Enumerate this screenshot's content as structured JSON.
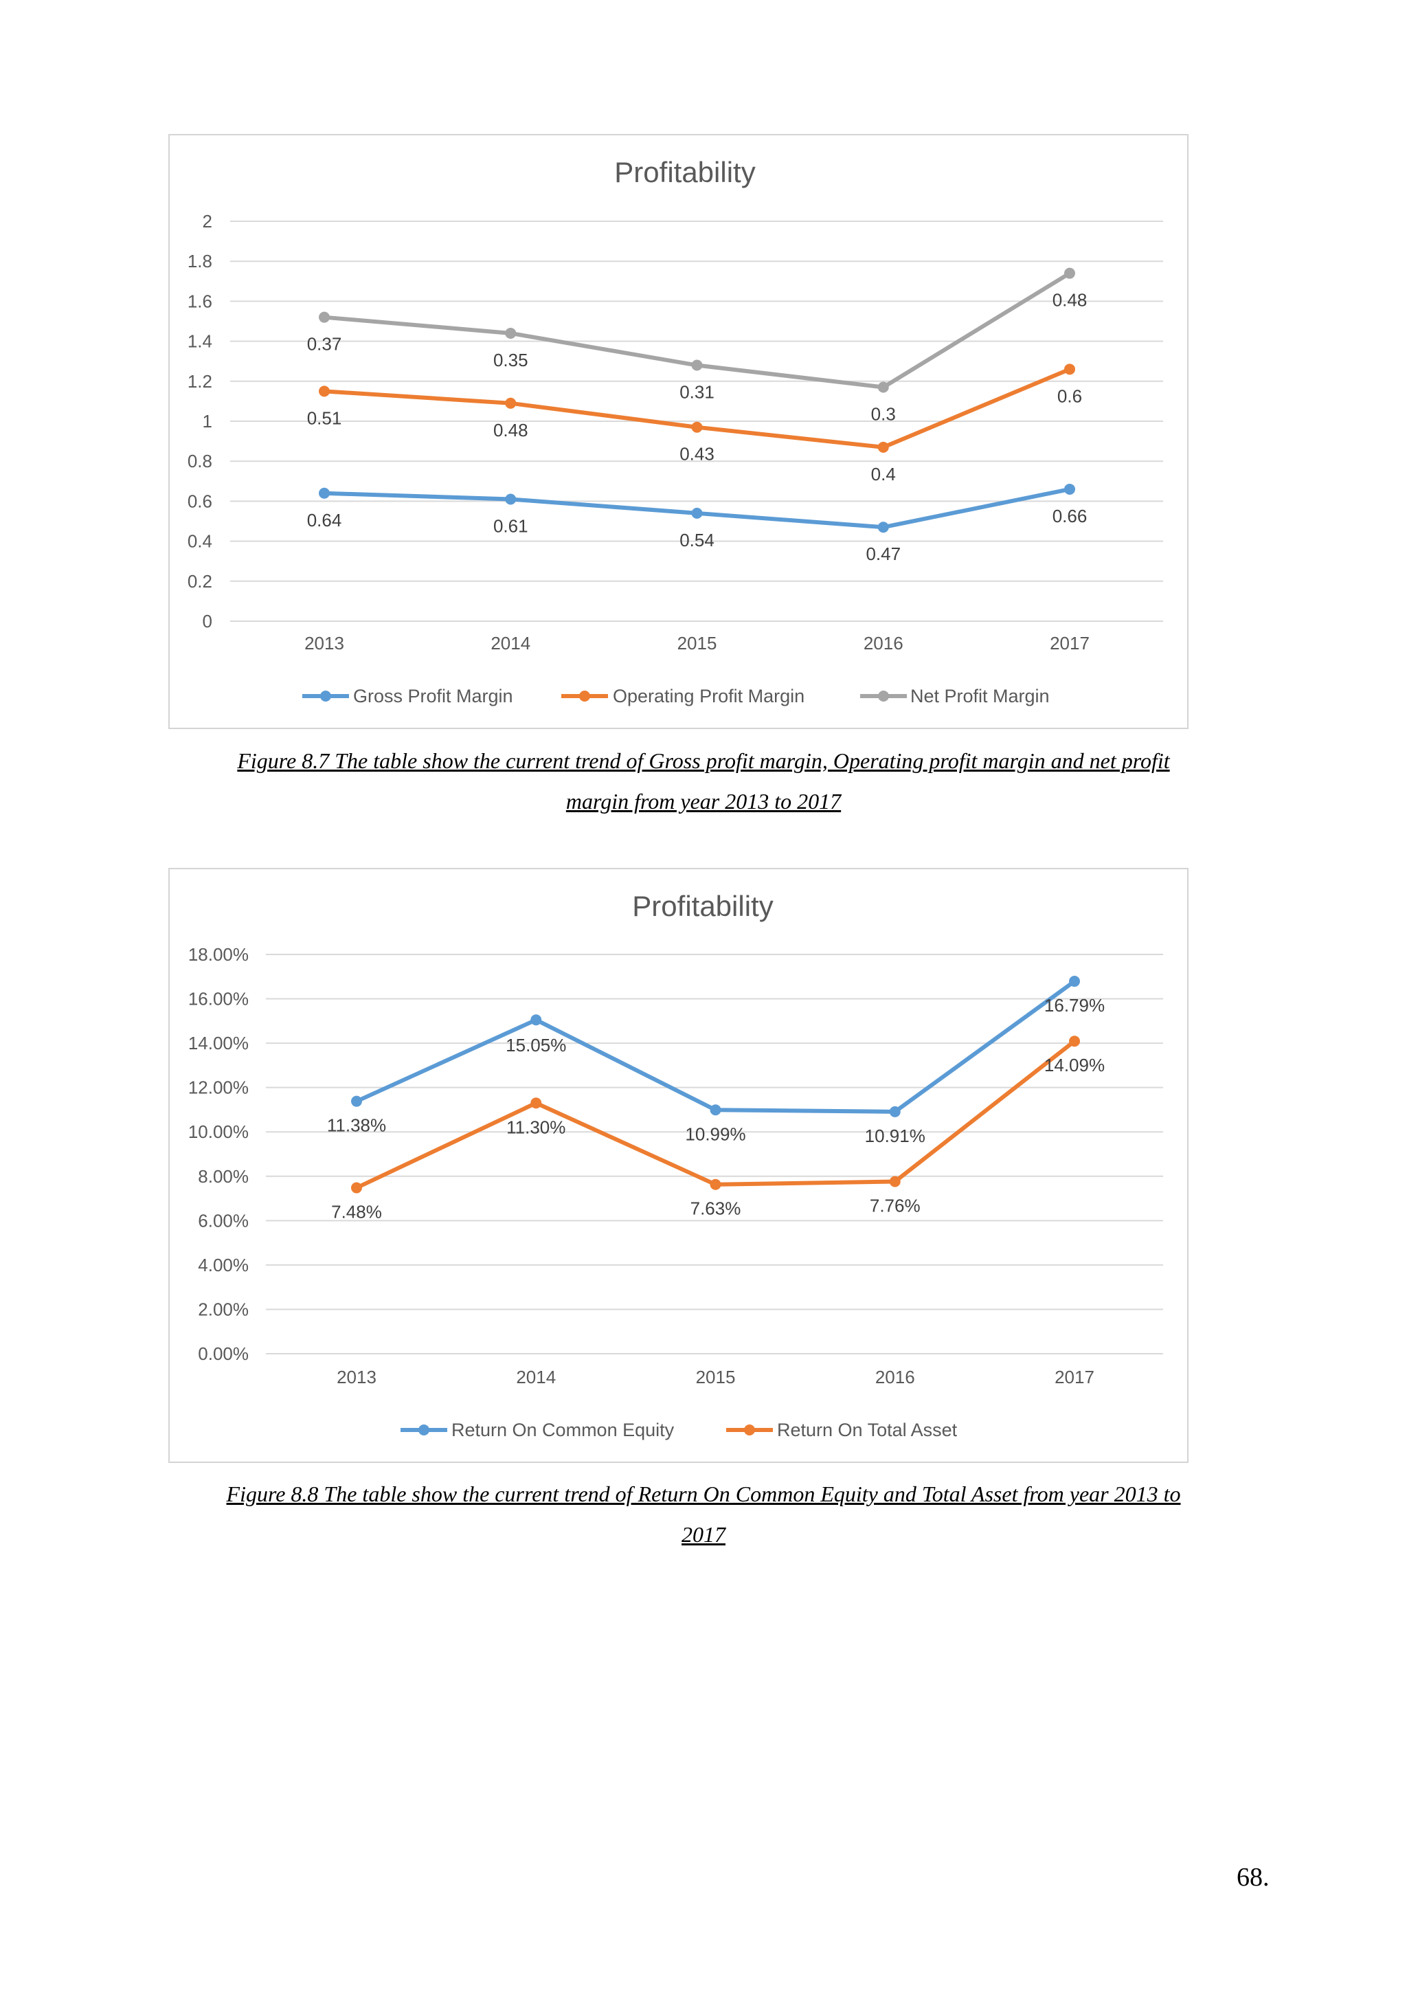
{
  "chart_data": [
    {
      "type": "line",
      "title": "Profitability",
      "categories": [
        "2013",
        "2014",
        "2015",
        "2016",
        "2017"
      ],
      "yticks": [
        "0",
        "0.2",
        "0.4",
        "0.6",
        "0.8",
        "1",
        "1.2",
        "1.4",
        "1.6",
        "1.8",
        "2"
      ],
      "ylim": [
        0,
        2
      ],
      "grid": true,
      "legend_position": "bottom",
      "stacked": true,
      "series": [
        {
          "name": "Gross Profit Margin",
          "color": "#5b9bd5",
          "values": [
            0.64,
            0.61,
            0.54,
            0.47,
            0.66
          ],
          "labels": [
            "0.64",
            "0.61",
            "0.54",
            "0.47",
            "0.66"
          ]
        },
        {
          "name": "Operating Profit Margin",
          "color": "#ed7d31",
          "values": [
            0.51,
            0.48,
            0.43,
            0.4,
            0.6
          ],
          "labels": [
            "0.51",
            "0.48",
            "0.43",
            "0.4",
            "0.6"
          ]
        },
        {
          "name": "Net Profit Margin",
          "color": "#a5a5a5",
          "values": [
            0.37,
            0.35,
            0.31,
            0.3,
            0.48
          ],
          "labels": [
            "0.37",
            "0.35",
            "0.31",
            "0.3",
            "0.48"
          ]
        }
      ]
    },
    {
      "type": "line",
      "title": "Profitability",
      "categories": [
        "2013",
        "2014",
        "2015",
        "2016",
        "2017"
      ],
      "yticks": [
        "0.00%",
        "2.00%",
        "4.00%",
        "6.00%",
        "8.00%",
        "10.00%",
        "12.00%",
        "14.00%",
        "16.00%",
        "18.00%"
      ],
      "ylim": [
        0,
        18
      ],
      "grid": true,
      "legend_position": "bottom",
      "stacked": false,
      "series": [
        {
          "name": "Return On Common Equity",
          "color": "#5b9bd5",
          "values": [
            11.38,
            15.05,
            10.99,
            10.91,
            16.79
          ],
          "labels": [
            "11.38%",
            "15.05%",
            "10.99%",
            "10.91%",
            "16.79%"
          ]
        },
        {
          "name": "Return On Total Asset",
          "color": "#ed7d31",
          "values": [
            7.48,
            11.3,
            7.63,
            7.76,
            14.09
          ],
          "labels": [
            "7.48%",
            "11.30%",
            "7.63%",
            "7.76%",
            "14.09%"
          ]
        }
      ]
    }
  ],
  "captions": {
    "figure_8_7_line1": "Figure 8.7 The table show the current trend of Gross profit margin, Operating profit margin and net profit",
    "figure_8_7_line2": "margin from year 2013 to 2017",
    "figure_8_8_line1": "Figure 8.8 The table show the current trend of Return On Common Equity and Total Asset from year 2013 to",
    "figure_8_8_line2": "2017"
  },
  "page_number": "68."
}
